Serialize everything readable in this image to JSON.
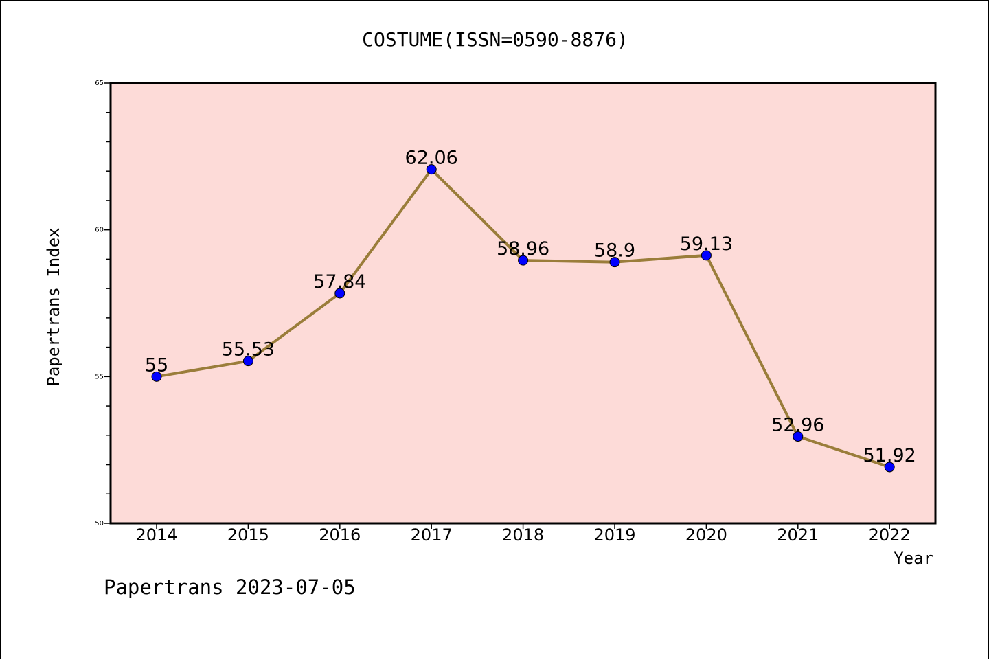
{
  "chart_data": {
    "type": "line",
    "title": "COSTUME(ISSN=0590-8876)",
    "xlabel": "Year",
    "ylabel": "Papertrans Index",
    "categories": [
      "2014",
      "2015",
      "2016",
      "2017",
      "2018",
      "2019",
      "2020",
      "2021",
      "2022"
    ],
    "series": [
      {
        "values": [
          55,
          55.53,
          57.84,
          62.06,
          58.96,
          58.9,
          59.13,
          52.96,
          51.92
        ],
        "labels": [
          "55",
          "55.53",
          "57.84",
          "62.06",
          "58.96",
          "58.9",
          "59.13",
          "52.96",
          "51.92"
        ],
        "line_color": "#9a7d3a",
        "marker_color": "#0000ff"
      }
    ],
    "ylim": [
      50,
      65
    ],
    "yticks": [
      "50",
      "55",
      "60",
      "65"
    ],
    "plot_background": "#fddbd8",
    "grid": false,
    "legend": "none"
  },
  "footer": {
    "watermark": "Papertrans 2023-07-05"
  }
}
